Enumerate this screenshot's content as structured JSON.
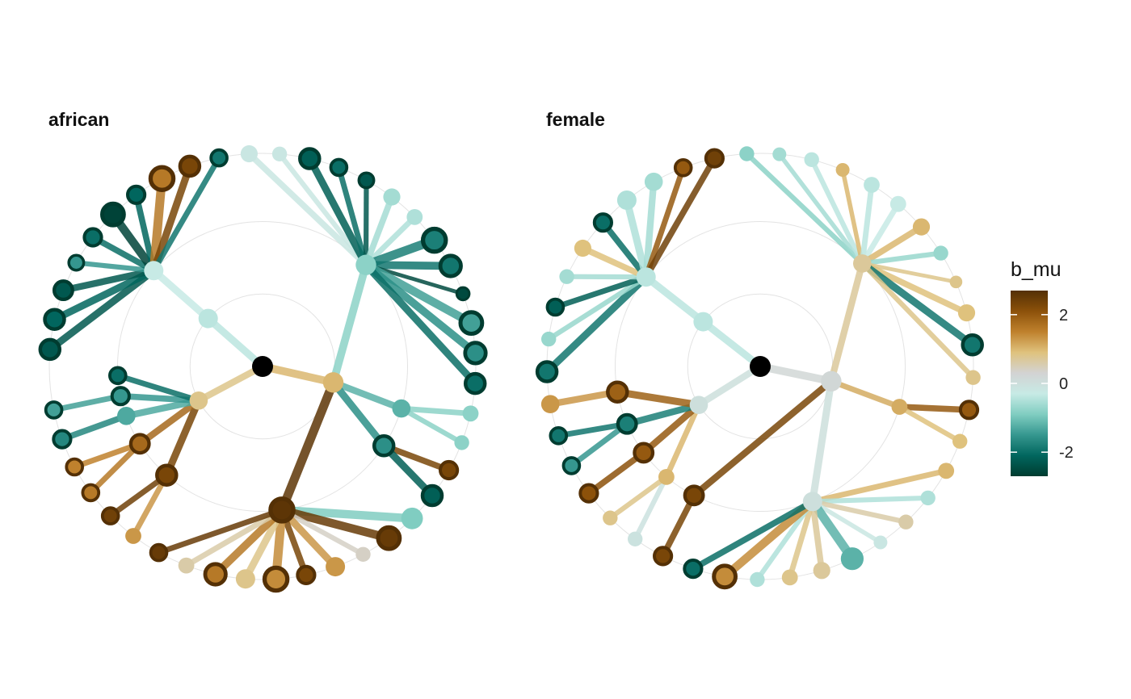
{
  "chart_data": {
    "type": "radial-tree",
    "legend": {
      "title": "b_mu",
      "ticks": [
        2,
        0,
        -2
      ],
      "tick_labels": [
        "2",
        "0",
        "-2"
      ],
      "range": [
        -2.7,
        2.7
      ],
      "colors": [
        "#003c30",
        "#01665e",
        "#35978f",
        "#80cdc1",
        "#c7eae5",
        "#d3d3d3",
        "#dfc27d",
        "#bf812d",
        "#8c510a",
        "#543005"
      ],
      "placement": "right"
    },
    "panels": [
      {
        "title": "african",
        "root": {
          "b_mu": null
        },
        "branches": [
          {
            "node": {
              "b_mu": 1.0,
              "size": 1.1
            },
            "children": [
              {
                "node": {
                  "b_mu": -0.8,
                  "size": 1.1
                },
                "leaves": [
                  {
                    "b_mu": -0.2,
                    "size": 0.8
                  },
                  {
                    "b_mu": -0.2,
                    "size": 0.6
                  },
                  {
                    "b_mu": -2.2,
                    "size": 1.0
                  },
                  {
                    "b_mu": -2.0,
                    "size": 0.7
                  },
                  {
                    "b_mu": -2.3,
                    "size": 0.6
                  },
                  {
                    "b_mu": -0.6,
                    "size": 0.8
                  },
                  {
                    "b_mu": -0.5,
                    "size": 0.7
                  },
                  {
                    "b_mu": -1.8,
                    "size": 1.3
                  },
                  {
                    "b_mu": -1.9,
                    "size": 1.1
                  },
                  {
                    "b_mu": -2.5,
                    "size": 0.4
                  },
                  {
                    "b_mu": -1.4,
                    "size": 1.2
                  },
                  {
                    "b_mu": -1.6,
                    "size": 1.1
                  },
                  {
                    "b_mu": -2.0,
                    "size": 1.0
                  }
                ]
              },
              {
                "node": {
                  "b_mu": -1.2,
                  "size": 0.9
                },
                "leaves": [
                  {
                    "b_mu": -0.8,
                    "size": 0.7
                  },
                  {
                    "b_mu": -0.8,
                    "size": 0.6
                  }
                ]
              },
              {
                "node": {
                  "b_mu": -1.6,
                  "size": 1.0
                },
                "leaves": [
                  {
                    "b_mu": 2.3,
                    "size": 0.8
                  },
                  {
                    "b_mu": -2.2,
                    "size": 1.0
                  }
                ]
              },
              {
                "node": {
                  "b_mu": 2.6,
                  "size": 1.3
                },
                "leaves": [
                  {
                    "b_mu": -0.9,
                    "size": 1.2
                  },
                  {
                    "b_mu": 2.5,
                    "size": 1.2
                  },
                  {
                    "b_mu": 0.4,
                    "size": 0.6
                  },
                  {
                    "b_mu": 1.3,
                    "size": 1.0
                  },
                  {
                    "b_mu": 2.3,
                    "size": 0.8
                  },
                  {
                    "b_mu": 1.4,
                    "size": 1.3
                  },
                  {
                    "b_mu": 0.8,
                    "size": 1.0
                  },
                  {
                    "b_mu": 1.6,
                    "size": 1.1
                  },
                  {
                    "b_mu": 0.6,
                    "size": 0.7
                  },
                  {
                    "b_mu": 2.5,
                    "size": 0.7
                  }
                ]
              }
            ]
          },
          {
            "node": {
              "b_mu": 0.8,
              "size": 0.9
            },
            "children": [
              {
                "node": {
                  "b_mu": 2.3,
                  "size": 1.0
                },
                "leaves": [
                  {
                    "b_mu": 1.3,
                    "size": 0.7
                  },
                  {
                    "b_mu": 2.4,
                    "size": 0.7
                  }
                ]
              },
              {
                "node": {
                  "b_mu": 1.8,
                  "size": 0.9
                },
                "leaves": [
                  {
                    "b_mu": 1.6,
                    "size": 0.7
                  },
                  {
                    "b_mu": 1.5,
                    "size": 0.7
                  }
                ]
              },
              {
                "node": {
                  "b_mu": -1.3,
                  "size": 0.9
                },
                "leaves": [
                  {
                    "b_mu": -1.7,
                    "size": 0.8
                  }
                ]
              },
              {
                "node": {
                  "b_mu": -1.5,
                  "size": 0.8
                },
                "leaves": [
                  {
                    "b_mu": -1.4,
                    "size": 0.7
                  }
                ]
              },
              {
                "node": {
                  "b_mu": -2.0,
                  "size": 0.7
                },
                "leaves": []
              }
            ]
          },
          {
            "node": {
              "b_mu": -0.4,
              "size": 1.0
            },
            "children": [
              {
                "node": {
                  "b_mu": -0.3,
                  "size": 1.0
                },
                "leaves": [
                  {
                    "b_mu": -2.3,
                    "size": 1.0
                  },
                  {
                    "b_mu": -2.1,
                    "size": 1.0
                  },
                  {
                    "b_mu": -2.3,
                    "size": 0.9
                  },
                  {
                    "b_mu": -1.5,
                    "size": 0.6
                  },
                  {
                    "b_mu": -2.0,
                    "size": 0.8
                  },
                  {
                    "b_mu": -2.6,
                    "size": 1.2
                  },
                  {
                    "b_mu": -2.1,
                    "size": 0.8
                  },
                  {
                    "b_mu": 1.6,
                    "size": 1.3
                  },
                  {
                    "b_mu": 2.3,
                    "size": 1.0
                  },
                  {
                    "b_mu": -1.9,
                    "size": 0.7
                  }
                ]
              }
            ]
          }
        ]
      },
      {
        "title": "female",
        "root": {
          "b_mu": null
        },
        "branches": [
          {
            "node": {
              "b_mu": 0.2,
              "size": 1.1
            },
            "children": [
              {
                "node": {
                  "b_mu": 0.7,
                  "size": 0.9
                },
                "leaves": [
                  {
                    "b_mu": -0.8,
                    "size": 0.6
                  },
                  {
                    "b_mu": -0.6,
                    "size": 0.5
                  },
                  {
                    "b_mu": -0.4,
                    "size": 0.6
                  },
                  {
                    "b_mu": 1.0,
                    "size": 0.5
                  },
                  {
                    "b_mu": -0.4,
                    "size": 0.7
                  },
                  {
                    "b_mu": -0.3,
                    "size": 0.7
                  },
                  {
                    "b_mu": 1.0,
                    "size": 0.8
                  },
                  {
                    "b_mu": -0.7,
                    "size": 0.6
                  },
                  {
                    "b_mu": 0.8,
                    "size": 0.4
                  },
                  {
                    "b_mu": 0.9,
                    "size": 0.8
                  },
                  {
                    "b_mu": -1.9,
                    "size": 1.0
                  },
                  {
                    "b_mu": 0.8,
                    "size": 0.6
                  }
                ]
              },
              {
                "node": {
                  "b_mu": 1.1,
                  "size": 0.7
                },
                "leaves": [
                  {
                    "b_mu": 2.0,
                    "size": 0.8
                  },
                  {
                    "b_mu": 0.9,
                    "size": 0.6
                  }
                ]
              },
              {
                "node": {
                  "b_mu": 0.0,
                  "size": 1.0
                },
                "leaves": [
                  {
                    "b_mu": 1.0,
                    "size": 0.7
                  },
                  {
                    "b_mu": -0.5,
                    "size": 0.6
                  },
                  {
                    "b_mu": 0.6,
                    "size": 0.6
                  },
                  {
                    "b_mu": -0.2,
                    "size": 0.5
                  },
                  {
                    "b_mu": -1.2,
                    "size": 1.3
                  },
                  {
                    "b_mu": 0.7,
                    "size": 0.8
                  },
                  {
                    "b_mu": 0.8,
                    "size": 0.7
                  },
                  {
                    "b_mu": -0.5,
                    "size": 0.6
                  },
                  {
                    "b_mu": 1.4,
                    "size": 1.2
                  },
                  {
                    "b_mu": -2.0,
                    "size": 0.8
                  }
                ]
              },
              {
                "node": {
                  "b_mu": 2.3,
                  "size": 0.9
                },
                "leaves": [
                  {
                    "b_mu": 2.3,
                    "size": 0.8
                  }
                ]
              }
            ]
          },
          {
            "node": {
              "b_mu": 0.0,
              "size": 0.9
            },
            "children": [
              {
                "node": {
                  "b_mu": 1.0,
                  "size": 0.7
                },
                "leaves": [
                  {
                    "b_mu": -0.1,
                    "size": 0.6
                  },
                  {
                    "b_mu": 0.8,
                    "size": 0.6
                  }
                ]
              },
              {
                "node": {
                  "b_mu": 2.0,
                  "size": 0.9
                },
                "leaves": [
                  {
                    "b_mu": 2.1,
                    "size": 0.8
                  }
                ]
              },
              {
                "node": {
                  "b_mu": -1.8,
                  "size": 0.9
                },
                "leaves": [
                  {
                    "b_mu": -1.5,
                    "size": 0.7
                  },
                  {
                    "b_mu": -1.9,
                    "size": 0.7
                  }
                ]
              },
              {
                "node": {
                  "b_mu": 1.9,
                  "size": 1.0
                },
                "leaves": [
                  {
                    "b_mu": 1.3,
                    "size": 0.9
                  }
                ]
              }
            ]
          },
          {
            "node": {
              "b_mu": -0.4,
              "size": 1.0
            },
            "children": [
              {
                "node": {
                  "b_mu": -0.4,
                  "size": 1.0
                },
                "leaves": [
                  {
                    "b_mu": -1.9,
                    "size": 1.0
                  },
                  {
                    "b_mu": -0.7,
                    "size": 0.6
                  },
                  {
                    "b_mu": -2.2,
                    "size": 0.7
                  },
                  {
                    "b_mu": -0.6,
                    "size": 0.6
                  },
                  {
                    "b_mu": 0.9,
                    "size": 0.8
                  },
                  {
                    "b_mu": -2.0,
                    "size": 0.8
                  },
                  {
                    "b_mu": -0.5,
                    "size": 1.0
                  },
                  {
                    "b_mu": -0.6,
                    "size": 0.9
                  },
                  {
                    "b_mu": 2.0,
                    "size": 0.7
                  },
                  {
                    "b_mu": 2.4,
                    "size": 0.8
                  }
                ]
              }
            ]
          }
        ]
      }
    ]
  }
}
